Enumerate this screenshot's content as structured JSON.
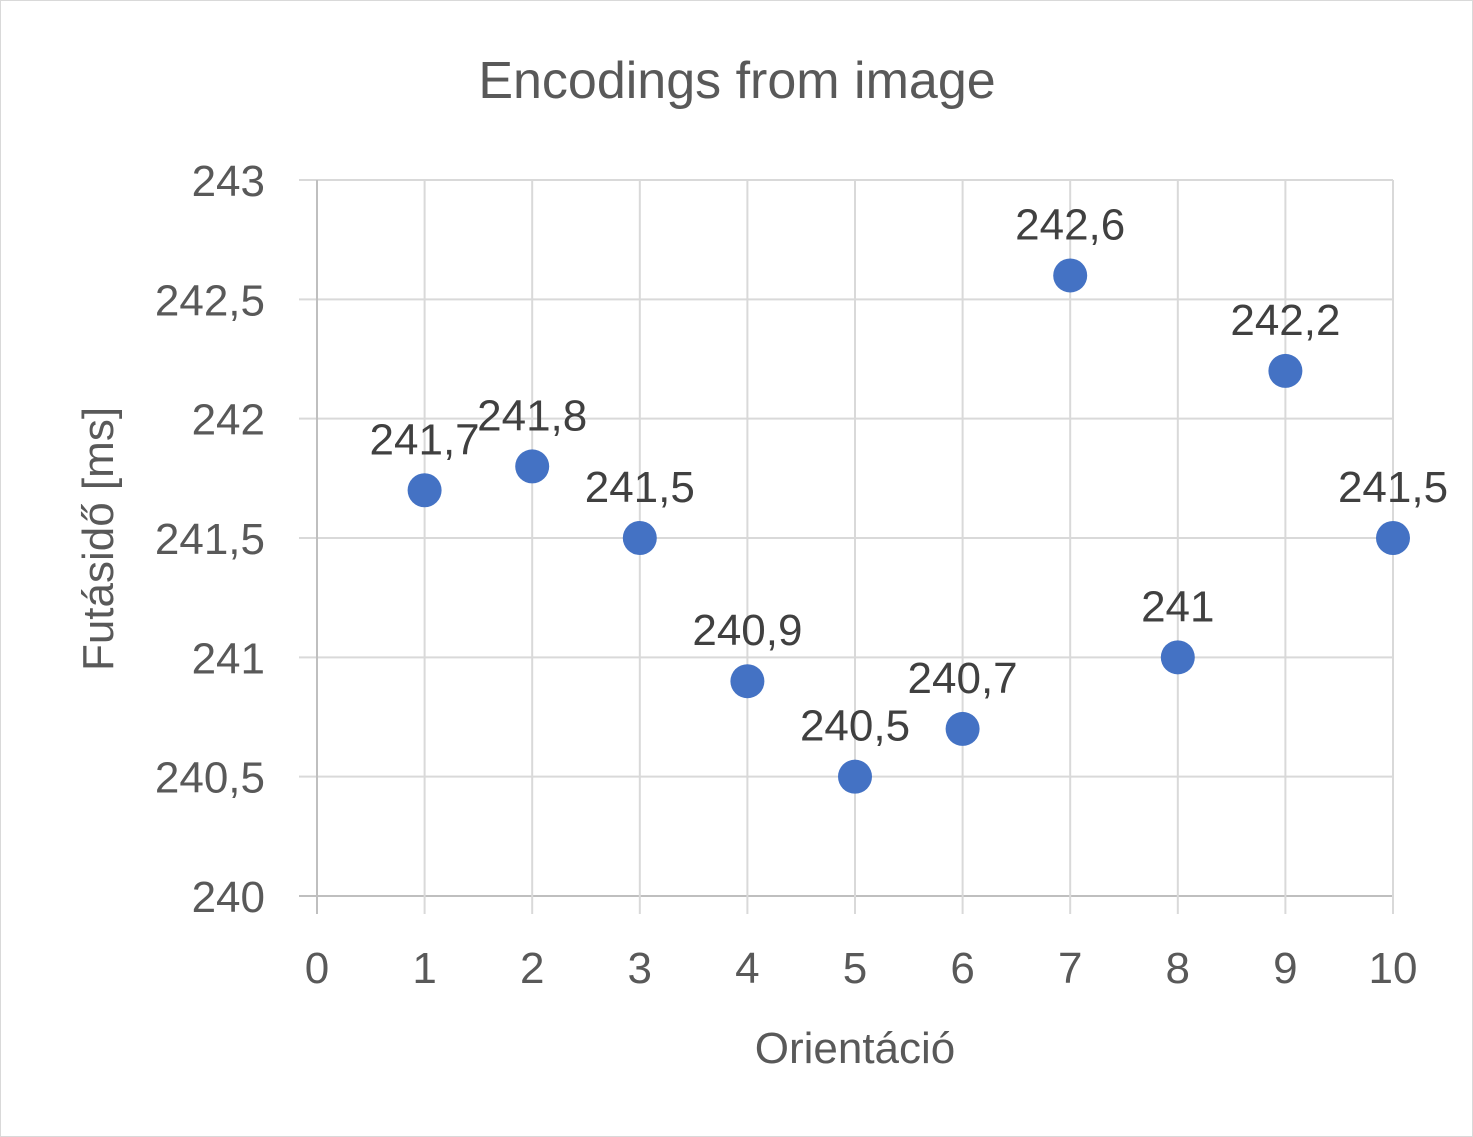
{
  "chart_data": {
    "type": "scatter",
    "title": "Encodings from image",
    "xlabel": "Orientáció",
    "ylabel": "Futásidő [ms]",
    "xlim": [
      0,
      10
    ],
    "ylim": [
      240,
      243
    ],
    "x_ticks": [
      "0",
      "1",
      "2",
      "3",
      "4",
      "5",
      "6",
      "7",
      "8",
      "9",
      "10"
    ],
    "y_ticks": [
      "240",
      "240,5",
      "241",
      "241,5",
      "242",
      "242,5",
      "243"
    ],
    "grid": true,
    "legend": "none",
    "marker_color": "#4472C4",
    "series": [
      {
        "points": [
          {
            "x": 1,
            "y": 241.7,
            "label": "241,7"
          },
          {
            "x": 2,
            "y": 241.8,
            "label": "241,8"
          },
          {
            "x": 3,
            "y": 241.5,
            "label": "241,5"
          },
          {
            "x": 4,
            "y": 240.9,
            "label": "240,9"
          },
          {
            "x": 5,
            "y": 240.5,
            "label": "240,5"
          },
          {
            "x": 6,
            "y": 240.7,
            "label": "240,7"
          },
          {
            "x": 7,
            "y": 242.6,
            "label": "242,6"
          },
          {
            "x": 8,
            "y": 241.0,
            "label": "241"
          },
          {
            "x": 9,
            "y": 242.2,
            "label": "242,2"
          },
          {
            "x": 10,
            "y": 241.5,
            "label": "241,5"
          }
        ]
      }
    ]
  }
}
